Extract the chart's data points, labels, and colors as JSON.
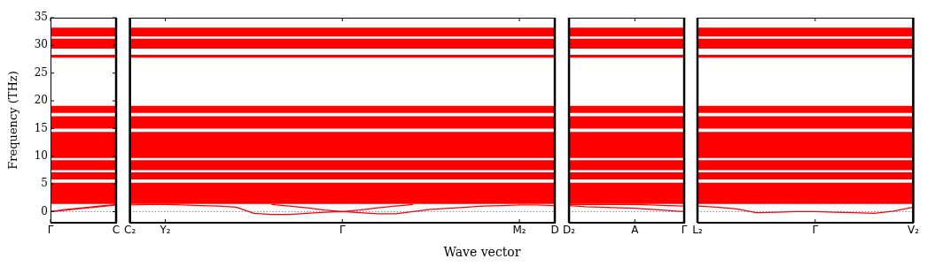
{
  "chart_data": [
    {
      "type": "line",
      "ylabel": "Frequency (THz)",
      "categories": [
        "Γ",
        null,
        null,
        null,
        "C"
      ],
      "ylim": [
        -2,
        35
      ],
      "yticks": [
        0,
        5,
        10,
        15,
        20,
        25,
        30,
        35
      ],
      "ref_lines": [
        {
          "axis": "y",
          "value": 0,
          "color": "#8080ff",
          "line_style": "dotted"
        }
      ],
      "bands": [
        {
          "axis": "y",
          "from": 31.6,
          "to": 33.2,
          "color": "#ff0000"
        },
        {
          "axis": "y",
          "from": 29.4,
          "to": 31.2,
          "color": "#ff0000"
        },
        {
          "axis": "y",
          "from": 27.8,
          "to": 28.3,
          "color": "#ff0000"
        },
        {
          "axis": "y",
          "from": 17.8,
          "to": 19.1,
          "color": "#ff0000"
        },
        {
          "axis": "y",
          "from": 15,
          "to": 17.2,
          "color": "#ff0000"
        },
        {
          "axis": "y",
          "from": 9.7,
          "to": 14.4,
          "color": "#ff0000"
        },
        {
          "axis": "y",
          "from": 7.5,
          "to": 9.3,
          "color": "#ff0000"
        },
        {
          "axis": "y",
          "from": 5.8,
          "to": 7.1,
          "color": "#ff0000"
        },
        {
          "axis": "y",
          "from": 1.4,
          "to": 5.2,
          "color": "#ff0000"
        }
      ],
      "series": [
        {
          "values": [
            0,
            0.3,
            0.6,
            0.9,
            1.2
          ],
          "color": "#ff0000"
        },
        {
          "values": [
            0,
            0.4,
            0.7,
            1.0,
            1.3
          ],
          "color": "#ff0000"
        }
      ]
    },
    {
      "type": "line",
      "xlabel": "Wave vector",
      "tick_labels": "x",
      "categories": [
        "C₂",
        null,
        "Y₂",
        null,
        null,
        null,
        null,
        null,
        null,
        null,
        null,
        null,
        "Γ",
        null,
        null,
        null,
        null,
        null,
        null,
        null,
        null,
        null,
        "M₂",
        null,
        "D"
      ],
      "ylim": [
        -2,
        35
      ],
      "ref_lines": [
        {
          "axis": "y",
          "value": 0,
          "color": "#8080ff",
          "line_style": "dotted"
        }
      ],
      "bands": [
        {
          "axis": "y",
          "from": 31.6,
          "to": 33.2,
          "color": "#ff0000"
        },
        {
          "axis": "y",
          "from": 29.4,
          "to": 31.2,
          "color": "#ff0000"
        },
        {
          "axis": "y",
          "from": 27.8,
          "to": 28.3,
          "color": "#ff0000"
        },
        {
          "axis": "y",
          "from": 17.8,
          "to": 19.1,
          "color": "#ff0000"
        },
        {
          "axis": "y",
          "from": 15,
          "to": 17.2,
          "color": "#ff0000"
        },
        {
          "axis": "y",
          "from": 9.7,
          "to": 14.4,
          "color": "#ff0000"
        },
        {
          "axis": "y",
          "from": 7.5,
          "to": 9.3,
          "color": "#ff0000"
        },
        {
          "axis": "y",
          "from": 5.8,
          "to": 7.1,
          "color": "#ff0000"
        },
        {
          "axis": "y",
          "from": 1.4,
          "to": 5.2,
          "color": "#ff0000"
        }
      ],
      "series": [
        {
          "values": [
            1.2,
            1.3,
            1.3,
            1.2,
            1.1,
            1.0,
            0.8,
            -0.3,
            -0.5,
            -0.5,
            -0.3,
            -0.1,
            0,
            -0.2,
            -0.4,
            -0.4,
            0,
            0.4,
            0.6,
            0.8,
            1.0,
            1.1,
            1.2,
            1.2,
            1.1
          ],
          "color": "#ff0000"
        },
        {
          "values": [
            null,
            null,
            null,
            null,
            null,
            null,
            null,
            null,
            1.3,
            1.0,
            0.7,
            0.3,
            0,
            0.3,
            0.7,
            1.0,
            1.3,
            null,
            null,
            null,
            null,
            null,
            null,
            null,
            null
          ],
          "color": "#ff0000"
        }
      ]
    },
    {
      "type": "line",
      "tick_labels": "x",
      "categories": [
        "D₂",
        null,
        null,
        null,
        "A",
        null,
        null,
        "Γ"
      ],
      "ylim": [
        -2,
        35
      ],
      "ref_lines": [
        {
          "axis": "y",
          "value": 0,
          "color": "#8080ff",
          "line_style": "dotted"
        }
      ],
      "bands": [
        {
          "axis": "y",
          "from": 31.6,
          "to": 33.2,
          "color": "#ff0000"
        },
        {
          "axis": "y",
          "from": 29.4,
          "to": 31.2,
          "color": "#ff0000"
        },
        {
          "axis": "y",
          "from": 27.8,
          "to": 28.3,
          "color": "#ff0000"
        },
        {
          "axis": "y",
          "from": 17.8,
          "to": 19.1,
          "color": "#ff0000"
        },
        {
          "axis": "y",
          "from": 15,
          "to": 17.2,
          "color": "#ff0000"
        },
        {
          "axis": "y",
          "from": 9.7,
          "to": 14.4,
          "color": "#ff0000"
        },
        {
          "axis": "y",
          "from": 7.5,
          "to": 9.3,
          "color": "#ff0000"
        },
        {
          "axis": "y",
          "from": 5.8,
          "to": 7.1,
          "color": "#ff0000"
        },
        {
          "axis": "y",
          "from": 1.4,
          "to": 5.2,
          "color": "#ff0000"
        }
      ],
      "series": [
        {
          "values": [
            1.1,
            0.9,
            0.8,
            0.7,
            0.6,
            0.4,
            0.2,
            0
          ],
          "color": "#ff0000"
        },
        {
          "values": [
            1.3,
            1.3,
            1.3,
            1.3,
            1.3,
            1.2,
            1.1,
            1.0
          ],
          "color": "#ff0000"
        }
      ]
    },
    {
      "type": "line",
      "tick_labels": "x",
      "categories": [
        "L₂",
        null,
        null,
        null,
        null,
        null,
        "Γ",
        null,
        null,
        null,
        null,
        "V₂"
      ],
      "ylim": [
        -2,
        35
      ],
      "ref_lines": [
        {
          "axis": "y",
          "value": 0,
          "color": "#8080ff",
          "line_style": "dotted"
        }
      ],
      "bands": [
        {
          "axis": "y",
          "from": 31.6,
          "to": 33.2,
          "color": "#ff0000"
        },
        {
          "axis": "y",
          "from": 29.4,
          "to": 31.2,
          "color": "#ff0000"
        },
        {
          "axis": "y",
          "from": 27.8,
          "to": 28.3,
          "color": "#ff0000"
        },
        {
          "axis": "y",
          "from": 17.8,
          "to": 19.1,
          "color": "#ff0000"
        },
        {
          "axis": "y",
          "from": 15,
          "to": 17.2,
          "color": "#ff0000"
        },
        {
          "axis": "y",
          "from": 9.7,
          "to": 14.4,
          "color": "#ff0000"
        },
        {
          "axis": "y",
          "from": 7.5,
          "to": 9.3,
          "color": "#ff0000"
        },
        {
          "axis": "y",
          "from": 5.8,
          "to": 7.1,
          "color": "#ff0000"
        },
        {
          "axis": "y",
          "from": 1.4,
          "to": 5.2,
          "color": "#ff0000"
        }
      ],
      "series": [
        {
          "values": [
            1.0,
            0.8,
            0.5,
            -0.2,
            -0.1,
            0,
            0,
            -0.1,
            -0.2,
            -0.3,
            0.1,
            0.8
          ],
          "color": "#ff0000"
        }
      ]
    }
  ]
}
